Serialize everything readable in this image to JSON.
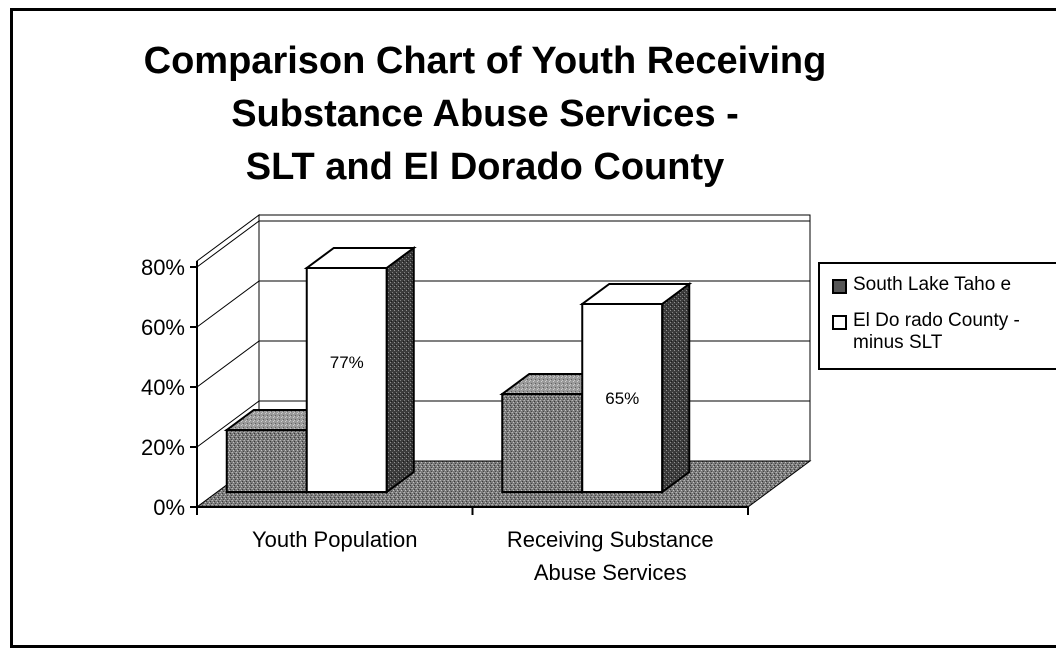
{
  "chart_data": {
    "type": "bar",
    "title_lines": [
      "Comparison Chart of Youth Receiving",
      "Substance Abuse Services -",
      "SLT and El Dorado County"
    ],
    "categories": [
      [
        "Youth Population"
      ],
      [
        "Receiving Substance",
        "Abuse Services"
      ]
    ],
    "series": [
      {
        "name": "South Lake Taho e",
        "values": [
          23,
          35
        ],
        "color": "#6e6e6e"
      },
      {
        "name": "El Do rado County -\nminus SLT",
        "values": [
          77,
          65
        ],
        "color": "#ffffff"
      }
    ],
    "data_labels": [
      {
        "series": 1,
        "category": 0,
        "text": "77%"
      },
      {
        "series": 1,
        "category": 1,
        "text": "65%"
      }
    ],
    "y_ticks": [
      "0%",
      "20%",
      "40%",
      "60%",
      "80%"
    ],
    "ylim": [
      0,
      80
    ],
    "grid": true,
    "three_d": true,
    "legend_position": "right"
  }
}
